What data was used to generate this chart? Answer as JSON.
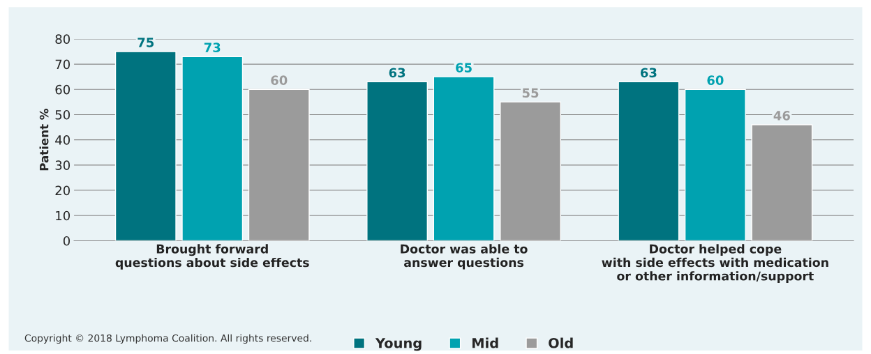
{
  "chart_data": {
    "type": "bar",
    "ylabel": "Patient %",
    "categories": [
      "Brought forward\nquestions about side effects",
      "Doctor was able to\nanswer questions",
      "Doctor helped cope\nwith side effects with medication\nor other information/support"
    ],
    "series": [
      {
        "name": "Young",
        "color": "#00737f",
        "values": [
          75,
          63,
          63
        ]
      },
      {
        "name": "Mid",
        "color": "#00a2b0",
        "values": [
          73,
          65,
          60
        ]
      },
      {
        "name": "Old",
        "color": "#9b9b9b",
        "values": [
          60,
          55,
          46
        ]
      }
    ],
    "ylim": [
      0,
      80
    ],
    "yticks": [
      0,
      10,
      20,
      30,
      40,
      50,
      60,
      70,
      80
    ],
    "grid": "y",
    "legend": "bottom",
    "data_labels": true,
    "annotations": [
      "Copyright © 2018 Lymphoma Coalition. All rights reserved."
    ]
  }
}
